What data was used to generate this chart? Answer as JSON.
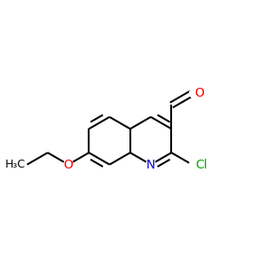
{
  "bg_color": "#ffffff",
  "bond_color": "#000000",
  "bond_width": 1.5,
  "atom_colors": {
    "N": "#0000cc",
    "O": "#ff0000",
    "Cl": "#00aa00",
    "C": "#000000"
  },
  "font_size_atoms": 10,
  "font_size_small": 9,
  "xlim": [
    0.0,
    1.0
  ],
  "ylim": [
    0.18,
    0.88
  ]
}
